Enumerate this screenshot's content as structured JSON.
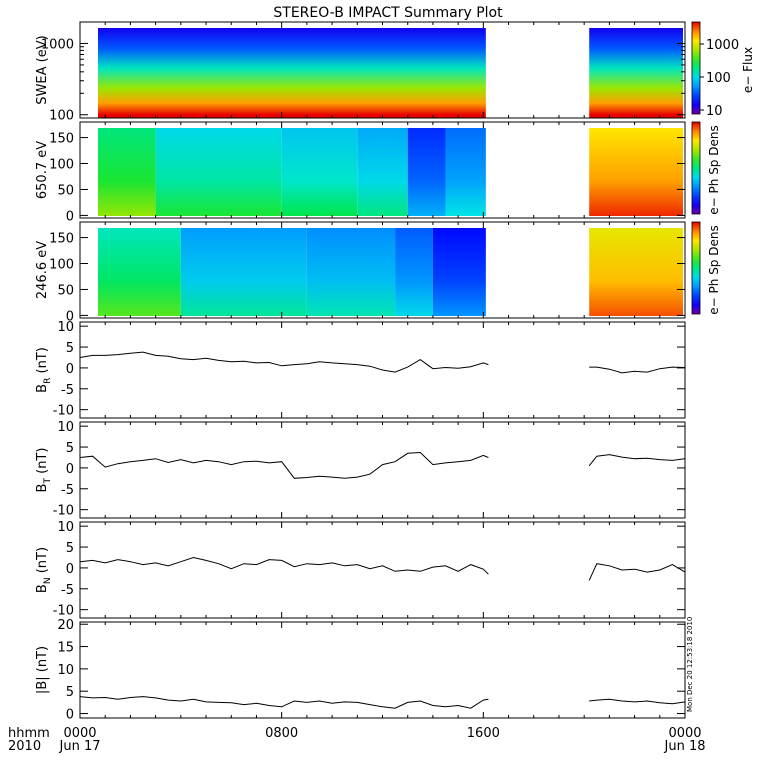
{
  "title": "STEREO-B IMPACT Summary Plot",
  "stamp": "Mon Dec 20 12:53:18 2010",
  "time_axis": {
    "row_labels": [
      "hhmm",
      "2010"
    ],
    "ticks": [
      {
        "hour": 0,
        "line1": "0000",
        "line2": "Jun 17"
      },
      {
        "hour": 8,
        "line1": "0800",
        "line2": ""
      },
      {
        "hour": 16,
        "line1": "1600",
        "line2": ""
      },
      {
        "hour": 24,
        "line1": "0000",
        "line2": "Jun 18"
      }
    ],
    "data_gap_hours": [
      16.1,
      20.2
    ]
  },
  "colors": {
    "axis": "#000000",
    "trace": "#000000"
  },
  "colorbars": [
    {
      "label": "e− Flux",
      "ticks": [
        "1000",
        "100",
        "10"
      ]
    },
    {
      "label": "e− Ph Sp Dens",
      "ticks": []
    },
    {
      "label": "e− Ph Sp Dens",
      "ticks": []
    }
  ],
  "chart_data": [
    {
      "type": "heatmap",
      "ylabel": "SWEA (eV)",
      "yscale": "log",
      "ylim": [
        90,
        2000
      ],
      "ytick_labels": [
        "1000",
        "100"
      ],
      "x_hours": [
        0,
        24
      ],
      "gap_hours": [
        16.1,
        20.2
      ],
      "z_label": "e− Flux",
      "z_range": [
        5,
        3000
      ],
      "description_bands": [
        {
          "energy_eV": 2000,
          "flux": 5
        },
        {
          "energy_eV": 1000,
          "flux": 12
        },
        {
          "energy_eV": 500,
          "flux": 60
        },
        {
          "energy_eV": 250,
          "flux": 300
        },
        {
          "energy_eV": 150,
          "flux": 1200
        },
        {
          "energy_eV": 100,
          "flux": 3000
        }
      ]
    },
    {
      "type": "heatmap",
      "ylabel": "650.7 eV",
      "ylim": [
        -5,
        180
      ],
      "ytick_labels": [
        "150",
        "100",
        "50",
        "0"
      ],
      "ytick_values": [
        150,
        100,
        50,
        0
      ],
      "x_hours": [
        0,
        24
      ],
      "gap_hours": [
        16.1,
        20.2
      ],
      "z_label": "e− Ph Sp Dens",
      "segments": [
        {
          "start_h": 0,
          "end_h": 3,
          "level": 0.55
        },
        {
          "start_h": 3,
          "end_h": 8,
          "level": 0.45
        },
        {
          "start_h": 8,
          "end_h": 11,
          "level": 0.42
        },
        {
          "start_h": 11,
          "end_h": 13,
          "level": 0.38
        },
        {
          "start_h": 13,
          "end_h": 14.5,
          "level": 0.22
        },
        {
          "start_h": 14.5,
          "end_h": 16.1,
          "level": 0.3
        },
        {
          "start_h": 20.2,
          "end_h": 24,
          "level": 0.85
        }
      ]
    },
    {
      "type": "heatmap",
      "ylabel": "246.6 eV",
      "ylim": [
        -5,
        180
      ],
      "ytick_labels": [
        "150",
        "100",
        "50",
        "0"
      ],
      "ytick_values": [
        150,
        100,
        50,
        0
      ],
      "x_hours": [
        0,
        24
      ],
      "gap_hours": [
        16.1,
        20.2
      ],
      "z_label": "e− Ph Sp Dens",
      "segments": [
        {
          "start_h": 0,
          "end_h": 4,
          "level": 0.5
        },
        {
          "start_h": 4,
          "end_h": 9,
          "level": 0.36
        },
        {
          "start_h": 9,
          "end_h": 12.5,
          "level": 0.34
        },
        {
          "start_h": 12.5,
          "end_h": 14,
          "level": 0.28
        },
        {
          "start_h": 14,
          "end_h": 16.1,
          "level": 0.18
        },
        {
          "start_h": 20.2,
          "end_h": 24,
          "level": 0.82
        }
      ]
    },
    {
      "type": "line",
      "ylabel": "B",
      "ylabel_sub": "R",
      "ylabel_unit": "(nT)",
      "ylim": [
        -12,
        11
      ],
      "yticks": [
        10,
        5,
        0,
        -5,
        -10
      ],
      "x_hours": [
        0,
        24
      ],
      "series": [
        {
          "x": [
            0,
            0.5,
            1,
            1.5,
            2,
            2.5,
            3,
            3.5,
            4,
            4.5,
            5,
            5.5,
            6,
            6.5,
            7,
            7.5,
            8,
            8.5,
            9,
            9.5,
            10,
            10.5,
            11,
            11.5,
            12,
            12.5,
            13,
            13.5,
            14,
            14.5,
            15,
            15.5,
            16,
            16.2
          ],
          "y": [
            2.5,
            3,
            3,
            3.2,
            3.5,
            3.8,
            3,
            2.8,
            2.2,
            2,
            2.3,
            1.8,
            1.5,
            1.6,
            1.2,
            1.3,
            0.5,
            0.8,
            1,
            1.5,
            1.2,
            1,
            0.8,
            0.4,
            -0.5,
            -1,
            0.2,
            2,
            -0.2,
            0.1,
            -0.1,
            0.3,
            1.2,
            0.8
          ]
        },
        {
          "x": [
            20.2,
            20.5,
            21,
            21.5,
            22,
            22.5,
            23,
            23.5,
            24
          ],
          "y": [
            0.2,
            0.2,
            -0.3,
            -1.2,
            -0.8,
            -1,
            -0.2,
            0.2,
            0.1
          ]
        }
      ]
    },
    {
      "type": "line",
      "ylabel": "B",
      "ylabel_sub": "T",
      "ylabel_unit": "(nT)",
      "ylim": [
        -12,
        11
      ],
      "yticks": [
        10,
        5,
        0,
        -5,
        -10
      ],
      "x_hours": [
        0,
        24
      ],
      "series": [
        {
          "x": [
            0,
            0.5,
            1,
            1.5,
            2,
            2.5,
            3,
            3.5,
            4,
            4.5,
            5,
            5.5,
            6,
            6.5,
            7,
            7.5,
            8,
            8.5,
            9,
            9.5,
            10,
            10.5,
            11,
            11.5,
            12,
            12.5,
            13,
            13.5,
            14,
            14.5,
            15,
            15.5,
            16,
            16.2
          ],
          "y": [
            2.5,
            2.8,
            0.2,
            1,
            1.5,
            1.8,
            2.2,
            1.3,
            2,
            1.2,
            1.8,
            1.5,
            0.8,
            1.5,
            1.6,
            1.2,
            1.5,
            -2.5,
            -2.3,
            -2,
            -2.2,
            -2.5,
            -2.2,
            -1.5,
            0.8,
            1.5,
            3.5,
            3.7,
            0.8,
            1.2,
            1.5,
            1.8,
            3,
            2.5
          ]
        },
        {
          "x": [
            20.2,
            20.5,
            21,
            21.5,
            22,
            22.5,
            23,
            23.5,
            24
          ],
          "y": [
            0.5,
            2.8,
            3.2,
            2.6,
            2.2,
            2.3,
            2,
            1.8,
            2.2
          ]
        }
      ]
    },
    {
      "type": "line",
      "ylabel": "B",
      "ylabel_sub": "N",
      "ylabel_unit": "(nT)",
      "ylim": [
        -12,
        11
      ],
      "yticks": [
        10,
        5,
        0,
        -5,
        -10
      ],
      "x_hours": [
        0,
        24
      ],
      "series": [
        {
          "x": [
            0,
            0.5,
            1,
            1.5,
            2,
            2.5,
            3,
            3.5,
            4,
            4.5,
            5,
            5.5,
            6,
            6.5,
            7,
            7.5,
            8,
            8.5,
            9,
            9.5,
            10,
            10.5,
            11,
            11.5,
            12,
            12.5,
            13,
            13.5,
            14,
            14.5,
            15,
            15.5,
            16,
            16.2
          ],
          "y": [
            1.5,
            1.8,
            1.2,
            2,
            1.5,
            0.8,
            1.2,
            0.5,
            1.5,
            2.5,
            1.8,
            1,
            -0.2,
            1,
            0.8,
            2,
            1.8,
            0.3,
            1,
            0.8,
            1.2,
            0.5,
            0.8,
            -0.2,
            0.5,
            -0.8,
            -0.5,
            -0.8,
            0.2,
            0.5,
            -0.8,
            0.8,
            -0.3,
            -1.5
          ]
        },
        {
          "x": [
            20.2,
            20.5,
            21,
            21.5,
            22,
            22.5,
            23,
            23.5,
            24
          ],
          "y": [
            -3,
            1,
            0.5,
            -0.5,
            -0.3,
            -1,
            -0.5,
            0.8,
            -1
          ]
        }
      ]
    },
    {
      "type": "line",
      "ylabel": "|B| (nT)",
      "ylim": [
        -1,
        20.5
      ],
      "yticks": [
        20,
        15,
        10,
        5,
        0
      ],
      "x_hours": [
        0,
        24
      ],
      "series": [
        {
          "x": [
            0,
            0.5,
            1,
            1.5,
            2,
            2.5,
            3,
            3.5,
            4,
            4.5,
            5,
            5.5,
            6,
            6.5,
            7,
            7.5,
            8,
            8.5,
            9,
            9.5,
            10,
            10.5,
            11,
            11.5,
            12,
            12.5,
            13,
            13.5,
            14,
            14.5,
            15,
            15.5,
            16,
            16.2
          ],
          "y": [
            3.8,
            3.5,
            3.6,
            3.2,
            3.6,
            3.8,
            3.5,
            3,
            2.8,
            3.2,
            2.6,
            2.5,
            2.4,
            2,
            2.3,
            1.8,
            1.5,
            2.8,
            2.5,
            2.8,
            2.3,
            2.6,
            2.5,
            2,
            1.5,
            1.2,
            2.5,
            2.8,
            1.8,
            1.5,
            1.8,
            1.2,
            3,
            3.2
          ]
        },
        {
          "x": [
            20.2,
            20.5,
            21,
            21.5,
            22,
            22.5,
            23,
            23.5,
            24
          ],
          "y": [
            2.8,
            3,
            3.2,
            2.8,
            2.6,
            2.8,
            2.4,
            2.2,
            2.6
          ]
        }
      ]
    }
  ]
}
